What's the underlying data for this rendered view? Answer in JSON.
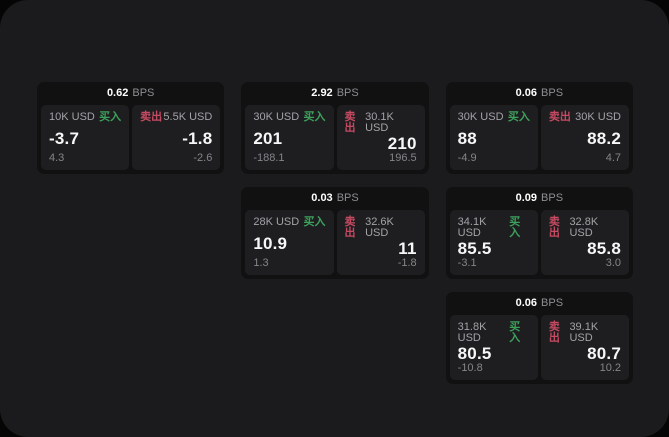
{
  "labels": {
    "buy": "买入",
    "sell": "卖出",
    "bps": "BPS"
  },
  "colors": {
    "surface": "#1b1b1d",
    "card_bg": "#111112",
    "tile_bg": "#1e1e20",
    "buy_green": "#3da15c",
    "sell_red": "#c54a62",
    "value_white": "#f7f7f7",
    "muted_gray": "#85858a"
  },
  "cards": [
    {
      "bps": "0.62",
      "buy": {
        "amount": "10K USD",
        "value": "-3.7",
        "delta": "4.3"
      },
      "sell": {
        "amount": "5.5K USD",
        "value": "-1.8",
        "delta": "-2.6"
      }
    },
    {
      "bps": "2.92",
      "buy": {
        "amount": "30K USD",
        "value": "201",
        "delta": "-188.1"
      },
      "sell": {
        "amount": "30.1K USD",
        "value": "210",
        "delta": "196.5"
      }
    },
    {
      "bps": "0.06",
      "buy": {
        "amount": "30K USD",
        "value": "88",
        "delta": "-4.9"
      },
      "sell": {
        "amount": "30K USD",
        "value": "88.2",
        "delta": "4.7"
      }
    },
    {
      "bps": "0.03",
      "buy": {
        "amount": "28K USD",
        "value": "10.9",
        "delta": "1.3"
      },
      "sell": {
        "amount": "32.6K USD",
        "value": "11",
        "delta": "-1.8"
      }
    },
    {
      "bps": "0.09",
      "buy": {
        "amount": "34.1K USD",
        "value": "85.5",
        "delta": "-3.1"
      },
      "sell": {
        "amount": "32.8K USD",
        "value": "85.8",
        "delta": "3.0"
      }
    },
    {
      "bps": "0.06",
      "buy": {
        "amount": "31.8K USD",
        "value": "80.5",
        "delta": "-10.8"
      },
      "sell": {
        "amount": "39.1K USD",
        "value": "80.7",
        "delta": "10.2"
      }
    }
  ]
}
